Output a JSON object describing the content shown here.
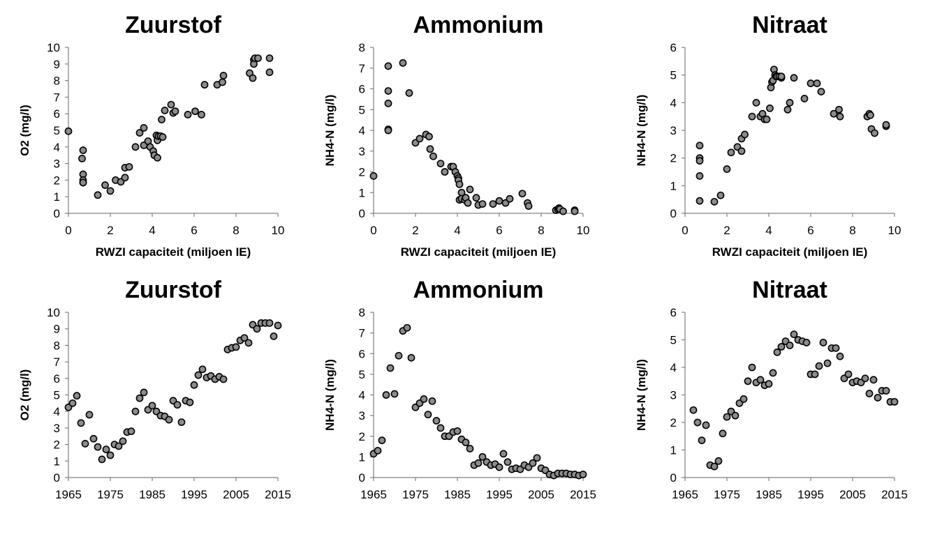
{
  "chart_data": [
    {
      "type": "scatter",
      "title": "Zuurstof",
      "xlabel": "RWZI capaciteit (miljoen IE)",
      "ylabel": "O2 (mg/l)",
      "xlim": [
        0,
        10
      ],
      "ylim": [
        0,
        10
      ],
      "xticks": [
        "0",
        "2",
        "4",
        "6",
        "8",
        "10"
      ],
      "yticks": [
        "0",
        "1",
        "2",
        "3",
        "4",
        "5",
        "6",
        "7",
        "8",
        "9",
        "10"
      ],
      "grid": false,
      "x": [
        0,
        0.65,
        0.7,
        0.7,
        0.7,
        0.7,
        0.7,
        1.4,
        1.75,
        2.0,
        2.25,
        2.5,
        2.7,
        2.7,
        2.9,
        3.2,
        3.4,
        3.6,
        3.6,
        3.8,
        3.9,
        4.05,
        4.1,
        4.2,
        4.25,
        4.25,
        4.3,
        4.4,
        4.5,
        4.45,
        4.6,
        4.9,
        5.0,
        5.1,
        5.7,
        6.05,
        6.35,
        6.5,
        7.1,
        7.35,
        7.4,
        8.65,
        8.8,
        8.85,
        8.85,
        8.9,
        9.05,
        9.6,
        9.6
      ],
      "y": [
        4.95,
        3.3,
        3.8,
        2.35,
        2.0,
        1.85,
        1.85,
        1.1,
        1.7,
        1.35,
        2.0,
        1.9,
        2.15,
        2.75,
        2.8,
        4.0,
        4.85,
        5.15,
        4.1,
        4.35,
        4.0,
        3.75,
        3.5,
        4.7,
        4.4,
        3.35,
        4.65,
        4.65,
        4.6,
        5.65,
        6.2,
        6.55,
        6.05,
        6.15,
        5.95,
        6.15,
        5.95,
        7.75,
        7.75,
        7.9,
        8.3,
        8.45,
        8.15,
        9.25,
        9.0,
        9.35,
        9.35,
        9.35,
        8.5
      ]
    },
    {
      "type": "scatter",
      "title": "Ammonium",
      "xlabel": "RWZI capaciteit (miljoen IE)",
      "ylabel": "NH4-N (mg/l)",
      "xlim": [
        0,
        10
      ],
      "ylim": [
        0,
        8
      ],
      "xticks": [
        "0",
        "2",
        "4",
        "6",
        "8",
        "10"
      ],
      "yticks": [
        "0",
        "1",
        "2",
        "3",
        "4",
        "5",
        "6",
        "7",
        "8"
      ],
      "grid": false,
      "x": [
        0,
        0.7,
        0.7,
        0.7,
        0.7,
        0.7,
        1.4,
        1.7,
        2.0,
        2.2,
        2.5,
        2.65,
        2.7,
        2.85,
        3.2,
        3.4,
        3.7,
        3.8,
        3.9,
        4.0,
        4.05,
        4.05,
        4.1,
        4.1,
        4.2,
        4.2,
        4.35,
        4.4,
        4.5,
        4.6,
        4.9,
        5.0,
        5.2,
        5.7,
        6.0,
        6.3,
        6.5,
        7.1,
        7.35,
        7.4,
        8.7,
        8.8,
        8.85,
        8.9,
        9.05,
        9.6,
        9.6
      ],
      "y": [
        1.8,
        7.1,
        5.9,
        5.3,
        4.05,
        4.0,
        7.25,
        5.8,
        3.4,
        3.6,
        3.8,
        3.7,
        3.1,
        2.75,
        2.4,
        2.0,
        2.25,
        2.25,
        2.0,
        1.8,
        1.7,
        1.6,
        1.4,
        0.65,
        1.0,
        0.7,
        0.65,
        0.75,
        0.5,
        1.15,
        0.75,
        0.4,
        0.45,
        0.45,
        0.6,
        0.5,
        0.7,
        0.95,
        0.5,
        0.35,
        0.15,
        0.2,
        0.25,
        0.2,
        0.1,
        0.15,
        0.1
      ]
    },
    {
      "type": "scatter",
      "title": "Nitraat",
      "xlabel": "RWZI capaciteit (miljoen IE)",
      "ylabel": "NH4-N (mg/l)",
      "xlim": [
        0,
        10
      ],
      "ylim": [
        0,
        6
      ],
      "xticks": [
        "0",
        "2",
        "4",
        "6",
        "8",
        "10"
      ],
      "yticks": [
        "0",
        "1",
        "2",
        "3",
        "4",
        "5",
        "6"
      ],
      "grid": false,
      "x": [
        0.7,
        0.7,
        0.7,
        0.7,
        0.7,
        1.4,
        1.7,
        2.0,
        2.2,
        2.5,
        2.7,
        2.7,
        2.85,
        3.2,
        3.4,
        3.6,
        3.7,
        3.8,
        3.9,
        4.05,
        4.1,
        4.15,
        4.2,
        4.25,
        4.3,
        4.35,
        4.4,
        4.5,
        4.6,
        4.6,
        4.9,
        5.0,
        5.2,
        5.7,
        6.0,
        6.3,
        6.5,
        7.1,
        7.35,
        7.4,
        8.7,
        8.8,
        8.85,
        8.9,
        9.05,
        9.6,
        9.6
      ],
      "y": [
        2.45,
        2.0,
        1.9,
        1.35,
        0.45,
        0.42,
        0.65,
        1.6,
        2.2,
        2.4,
        2.25,
        2.7,
        2.85,
        3.5,
        4.0,
        3.5,
        3.6,
        3.4,
        3.4,
        3.8,
        4.55,
        4.75,
        4.8,
        5.2,
        5.0,
        4.95,
        4.95,
        4.95,
        4.9,
        4.95,
        3.75,
        4.0,
        4.9,
        4.15,
        4.7,
        4.7,
        4.4,
        3.6,
        3.75,
        3.5,
        3.5,
        3.6,
        3.55,
        3.05,
        2.9,
        3.15,
        3.2
      ]
    },
    {
      "type": "scatter",
      "title": "Zuurstof",
      "xlabel": "",
      "ylabel": "O2 (mg/l)",
      "xlim": [
        1965,
        2015
      ],
      "ylim": [
        0,
        10
      ],
      "xticks": [
        "1965",
        "1975",
        "1985",
        "1995",
        "2005",
        "2015"
      ],
      "yticks": [
        "0",
        "1",
        "2",
        "3",
        "4",
        "5",
        "6",
        "7",
        "8",
        "9",
        "10"
      ],
      "grid": false,
      "x": [
        1965,
        1966,
        1967,
        1968,
        1969,
        1970,
        1971,
        1972,
        1973,
        1974,
        1975,
        1976,
        1977,
        1978,
        1979,
        1980,
        1981,
        1982,
        1983,
        1984,
        1985,
        1986,
        1987,
        1988,
        1989,
        1990,
        1991,
        1992,
        1993,
        1994,
        1995,
        1996,
        1997,
        1998,
        1999,
        2000,
        2001,
        2002,
        2003,
        2004,
        2005,
        2006,
        2007,
        2008,
        2009,
        2010,
        2011,
        2012,
        2013,
        2014,
        2015
      ],
      "y": [
        4.25,
        4.5,
        4.95,
        3.3,
        2.05,
        3.8,
        2.35,
        1.85,
        1.1,
        1.7,
        1.35,
        2.0,
        1.9,
        2.2,
        2.75,
        2.8,
        4.0,
        4.8,
        5.15,
        4.1,
        4.35,
        4.0,
        3.75,
        3.7,
        3.5,
        4.65,
        4.4,
        3.35,
        4.65,
        4.55,
        5.6,
        6.2,
        6.55,
        6.05,
        6.15,
        5.95,
        6.1,
        5.95,
        7.75,
        7.85,
        7.9,
        8.3,
        8.45,
        8.15,
        9.25,
        9.0,
        9.35,
        9.35,
        9.35,
        8.55,
        9.2
      ]
    },
    {
      "type": "scatter",
      "title": "Ammonium",
      "xlabel": "",
      "ylabel": "NH4-N (mg/l)",
      "xlim": [
        1965,
        2015
      ],
      "ylim": [
        0,
        8
      ],
      "xticks": [
        "1965",
        "1975",
        "1985",
        "1995",
        "2005",
        "2015"
      ],
      "yticks": [
        "0",
        "1",
        "2",
        "3",
        "4",
        "5",
        "6",
        "7",
        "8"
      ],
      "grid": false,
      "x": [
        1965,
        1966,
        1967,
        1968,
        1969,
        1970,
        1971,
        1972,
        1973,
        1974,
        1975,
        1976,
        1977,
        1978,
        1979,
        1980,
        1981,
        1982,
        1983,
        1984,
        1985,
        1986,
        1987,
        1988,
        1989,
        1990,
        1991,
        1992,
        1993,
        1994,
        1995,
        1996,
        1997,
        1998,
        1999,
        2000,
        2001,
        2002,
        2003,
        2004,
        2005,
        2006,
        2007,
        2008,
        2009,
        2010,
        2011,
        2012,
        2013,
        2014,
        2015
      ],
      "y": [
        1.15,
        1.3,
        1.8,
        4.0,
        5.3,
        4.05,
        5.9,
        7.1,
        7.25,
        5.8,
        3.4,
        3.6,
        3.8,
        3.05,
        3.7,
        2.75,
        2.4,
        2.0,
        2.0,
        2.2,
        2.25,
        1.85,
        1.7,
        1.4,
        0.6,
        0.7,
        1.0,
        0.75,
        0.6,
        0.65,
        0.5,
        1.15,
        0.75,
        0.4,
        0.45,
        0.4,
        0.6,
        0.5,
        0.7,
        0.95,
        0.45,
        0.35,
        0.15,
        0.1,
        0.2,
        0.2,
        0.2,
        0.15,
        0.15,
        0.1,
        0.15
      ]
    },
    {
      "type": "scatter",
      "title": "Nitraat",
      "xlabel": "",
      "ylabel": "NH4-N (mg/l)",
      "xlim": [
        1965,
        2015
      ],
      "ylim": [
        0,
        6
      ],
      "xticks": [
        "1965",
        "1975",
        "1985",
        "1995",
        "2005",
        "2015"
      ],
      "yticks": [
        "0",
        "1",
        "2",
        "3",
        "4",
        "5",
        "6"
      ],
      "grid": false,
      "x": [
        1967,
        1968,
        1969,
        1970,
        1971,
        1972,
        1973,
        1974,
        1975,
        1976,
        1977,
        1978,
        1979,
        1980,
        1981,
        1982,
        1983,
        1984,
        1985,
        1986,
        1987,
        1988,
        1989,
        1990,
        1991,
        1992,
        1993,
        1994,
        1995,
        1996,
        1997,
        1998,
        1999,
        2000,
        2001,
        2002,
        2003,
        2004,
        2005,
        2006,
        2007,
        2008,
        2009,
        2010,
        2011,
        2012,
        2013,
        2014,
        2015
      ],
      "y": [
        2.45,
        2.0,
        1.35,
        1.9,
        0.45,
        0.4,
        0.6,
        1.6,
        2.2,
        2.4,
        2.25,
        2.7,
        2.85,
        3.5,
        4.0,
        3.45,
        3.55,
        3.35,
        3.4,
        3.8,
        4.55,
        4.75,
        4.95,
        4.8,
        5.2,
        5.0,
        4.95,
        4.9,
        3.75,
        3.75,
        4.05,
        4.9,
        4.15,
        4.7,
        4.7,
        4.4,
        3.6,
        3.75,
        3.45,
        3.5,
        3.45,
        3.6,
        3.05,
        3.55,
        2.9,
        3.15,
        3.15,
        2.75,
        2.75
      ]
    }
  ]
}
